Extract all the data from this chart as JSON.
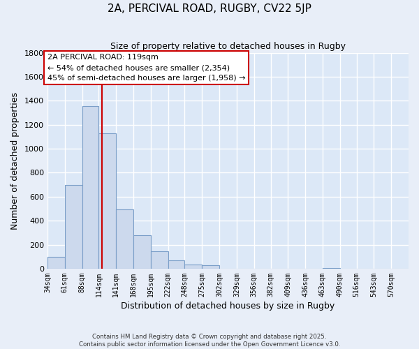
{
  "title": "2A, PERCIVAL ROAD, RUGBY, CV22 5JP",
  "subtitle": "Size of property relative to detached houses in Rugby",
  "xlabel": "Distribution of detached houses by size in Rugby",
  "ylabel": "Number of detached properties",
  "bar_color": "#ccd9ed",
  "bar_edge_color": "#7a9ec8",
  "background_color": "#dce8f7",
  "fig_background": "#e8eef8",
  "grid_color": "#ffffff",
  "bins": [
    34,
    61,
    88,
    114,
    141,
    168,
    195,
    222,
    248,
    275,
    302,
    329,
    356,
    382,
    409,
    436,
    463,
    490,
    516,
    543,
    570
  ],
  "bin_labels": [
    "34sqm",
    "61sqm",
    "88sqm",
    "114sqm",
    "141sqm",
    "168sqm",
    "195sqm",
    "222sqm",
    "248sqm",
    "275sqm",
    "302sqm",
    "329sqm",
    "356sqm",
    "382sqm",
    "409sqm",
    "436sqm",
    "463sqm",
    "490sqm",
    "516sqm",
    "543sqm",
    "570sqm"
  ],
  "values": [
    100,
    700,
    1355,
    1130,
    495,
    280,
    148,
    68,
    32,
    30,
    0,
    0,
    0,
    0,
    0,
    0,
    8,
    0,
    0,
    0,
    0
  ],
  "ylim": [
    0,
    1800
  ],
  "yticks": [
    0,
    200,
    400,
    600,
    800,
    1000,
    1200,
    1400,
    1600,
    1800
  ],
  "property_line_x": 119,
  "property_line_color": "#cc0000",
  "annotation_title": "2A PERCIVAL ROAD: 119sqm",
  "annotation_line1": "← 54% of detached houses are smaller (2,354)",
  "annotation_line2": "45% of semi-detached houses are larger (1,958) →",
  "annotation_box_color": "#ffffff",
  "annotation_box_edge": "#cc0000",
  "footer_line1": "Contains HM Land Registry data © Crown copyright and database right 2025.",
  "footer_line2": "Contains public sector information licensed under the Open Government Licence v3.0."
}
